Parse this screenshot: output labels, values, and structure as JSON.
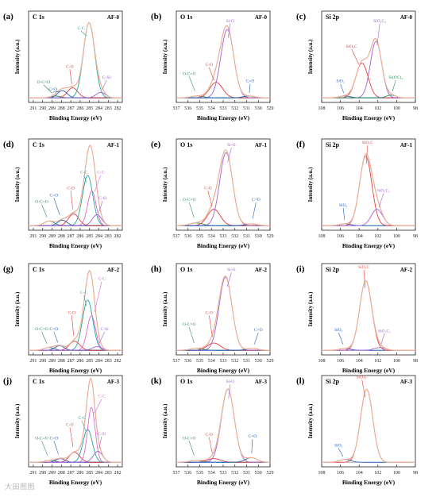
{
  "watermark": "大田图图",
  "colors": {
    "envelope": "#f0a888",
    "fit": "#e2e2e2",
    "axis": "#222222"
  },
  "chart_data": [
    {
      "panel_label": "(a)",
      "type": "line",
      "spectrum": "C 1s",
      "sample": "AF-0",
      "xlabel": "Binding Energy (eV)",
      "ylabel": "Intensity (a.u.)",
      "xlim": [
        291.5,
        281.5
      ],
      "xticks": [
        291,
        290,
        289,
        288,
        287,
        286,
        285,
        284,
        283,
        282
      ],
      "ylim": [
        0,
        1
      ],
      "baseline": 0.05,
      "peaks": [
        {
          "name": "O-C=O",
          "center": 288.6,
          "height": 0.02,
          "width": 0.55,
          "color": "#2e8b57",
          "label_at": [
            289.9,
            0.21
          ]
        },
        {
          "name": "C=O",
          "center": 287.9,
          "height": 0.08,
          "width": 0.5,
          "color": "#1f5fb8",
          "label_at": [
            288.9,
            0.13
          ]
        },
        {
          "name": "C-O",
          "center": 286.8,
          "height": 0.11,
          "width": 0.55,
          "color": "#e23c3c",
          "label_at": [
            287.1,
            0.38
          ]
        },
        {
          "name": "C-C",
          "center": 285.05,
          "height": 0.82,
          "width": 0.6,
          "color": "#22a6a0",
          "label_at": [
            285.9,
            0.8
          ]
        },
        {
          "name": "C-Si",
          "center": 283.8,
          "height": 0.06,
          "width": 0.5,
          "color": "#a060d0",
          "label_at": [
            283.2,
            0.26
          ]
        }
      ]
    },
    {
      "panel_label": "(b)",
      "type": "line",
      "spectrum": "O 1s",
      "sample": "AF-0",
      "xlabel": "Binding Energy (eV)",
      "ylabel": "Intensity (a.u.)",
      "xlim": [
        537,
        529
      ],
      "xticks": [
        537,
        536,
        535,
        534,
        533,
        532,
        531,
        530,
        529
      ],
      "ylim": [
        0,
        1
      ],
      "baseline": 0.05,
      "peaks": [
        {
          "name": "O-C=O",
          "center": 535.2,
          "height": 0.02,
          "width": 0.55,
          "color": "#2e8b57",
          "label_at": [
            535.9,
            0.3
          ]
        },
        {
          "name": "C-O",
          "center": 533.6,
          "height": 0.17,
          "width": 0.55,
          "color": "#e23c3c",
          "label_at": [
            534.2,
            0.4
          ]
        },
        {
          "name": "Si-O",
          "center": 532.65,
          "height": 0.75,
          "width": 0.55,
          "color": "#a060d0",
          "label_at": [
            532.4,
            0.88
          ]
        },
        {
          "name": "C=O",
          "center": 530.8,
          "height": 0.02,
          "width": 0.5,
          "color": "#1f5fb8",
          "label_at": [
            530.7,
            0.22
          ]
        }
      ]
    },
    {
      "panel_label": "(c)",
      "type": "line",
      "spectrum": "Si 2p",
      "sample": "AF-0",
      "xlabel": "Binding Energy (eV)",
      "ylabel": "Intensity (a.u.)",
      "xlim": [
        108,
        98
      ],
      "xticks": [
        108,
        106,
        104,
        102,
        100,
        98
      ],
      "ylim": [
        0,
        1
      ],
      "baseline": 0.05,
      "peaks": [
        {
          "name": "SiO₂",
          "center": 105.5,
          "height": 0.02,
          "width": 0.6,
          "color": "#1f5fb8",
          "label_at": [
            106,
            0.22
          ]
        },
        {
          "name": "SiO₂C",
          "center": 103.7,
          "height": 0.38,
          "width": 0.65,
          "color": "#e23c3c",
          "label_at": [
            104.8,
            0.6
          ]
        },
        {
          "name": "SiO₂C₂",
          "center": 102.2,
          "height": 0.62,
          "width": 0.6,
          "color": "#a060d0",
          "label_at": [
            101.8,
            0.88
          ]
        },
        {
          "name": "Si(OC)₄",
          "center": 100.6,
          "height": 0.03,
          "width": 0.5,
          "color": "#2e8b57",
          "label_at": [
            100.1,
            0.26
          ]
        }
      ]
    },
    {
      "panel_label": "(d)",
      "type": "line",
      "spectrum": "C 1s",
      "sample": "AF-1",
      "xlabel": "Binding Energy (eV)",
      "ylabel": "Intensity (a.u.)",
      "xlim": [
        291.5,
        281.5
      ],
      "xticks": [
        291,
        290,
        289,
        288,
        287,
        286,
        285,
        284,
        283,
        282
      ],
      "ylim": [
        0,
        1
      ],
      "baseline": 0.05,
      "peaks": [
        {
          "name": "O-C=O",
          "center": 289.3,
          "height": 0.05,
          "width": 0.55,
          "color": "#2e8b57",
          "label_at": [
            290.1,
            0.3
          ]
        },
        {
          "name": "C=O",
          "center": 287.9,
          "height": 0.06,
          "width": 0.5,
          "color": "#1f5fb8",
          "label_at": [
            288.8,
            0.37
          ]
        },
        {
          "name": "C-O",
          "center": 286.7,
          "height": 0.13,
          "width": 0.55,
          "color": "#e23c3c",
          "label_at": [
            287,
            0.45
          ]
        },
        {
          "name": "C-C",
          "center": 285.2,
          "height": 0.55,
          "width": 0.55,
          "color": "#22a6a0",
          "label_at": [
            285.6,
            0.62
          ]
        },
        {
          "name": "C-C",
          "center": 284.75,
          "height": 0.38,
          "width": 0.45,
          "color": "#d66bd6",
          "label_at": [
            283.8,
            0.62
          ]
        },
        {
          "name": "C-Si",
          "center": 284.2,
          "height": 0.12,
          "width": 0.5,
          "color": "#a060d0",
          "label_at": [
            283.6,
            0.34
          ]
        }
      ]
    },
    {
      "panel_label": "(e)",
      "type": "line",
      "spectrum": "O 1s",
      "sample": "AF-1",
      "xlabel": "Binding Energy (eV)",
      "ylabel": "Intensity (a.u.)",
      "xlim": [
        537,
        529
      ],
      "xticks": [
        537,
        536,
        535,
        534,
        533,
        532,
        531,
        530,
        529
      ],
      "ylim": [
        0,
        1
      ],
      "baseline": 0.05,
      "peaks": [
        {
          "name": "O-C=O",
          "center": 535.3,
          "height": 0.03,
          "width": 0.55,
          "color": "#2e8b57",
          "label_at": [
            535.9,
            0.32
          ]
        },
        {
          "name": "C-O",
          "center": 533.8,
          "height": 0.18,
          "width": 0.55,
          "color": "#e23c3c",
          "label_at": [
            534.3,
            0.45
          ]
        },
        {
          "name": "Si-O",
          "center": 532.75,
          "height": 0.8,
          "width": 0.55,
          "color": "#a060d0",
          "label_at": [
            532.3,
            0.92
          ]
        },
        {
          "name": "C=O",
          "center": 530.6,
          "height": 0.02,
          "width": 0.5,
          "color": "#1f5fb8",
          "label_at": [
            530.2,
            0.32
          ]
        }
      ]
    },
    {
      "panel_label": "(f)",
      "type": "line",
      "spectrum": "Si 2p",
      "sample": "AF-1",
      "xlabel": "Binding Energy (eV)",
      "ylabel": "Intensity (a.u.)",
      "xlim": [
        108,
        98
      ],
      "xticks": [
        108,
        106,
        104,
        102,
        100,
        98
      ],
      "ylim": [
        0,
        1
      ],
      "baseline": 0.05,
      "peaks": [
        {
          "name": "SiO₂",
          "center": 105.5,
          "height": 0.02,
          "width": 0.6,
          "color": "#1f5fb8",
          "label_at": [
            105.7,
            0.26
          ]
        },
        {
          "name": "SiO₃C",
          "center": 103.3,
          "height": 0.76,
          "width": 0.65,
          "color": "#e23c3c",
          "label_at": [
            103.1,
            0.95
          ]
        },
        {
          "name": "SiO₂C₂",
          "center": 102.1,
          "height": 0.18,
          "width": 0.6,
          "color": "#a060d0",
          "label_at": [
            101.4,
            0.42
          ]
        }
      ]
    },
    {
      "panel_label": "(g)",
      "type": "line",
      "spectrum": "C 1s",
      "sample": "AF-2",
      "xlabel": "Binding Energy (eV)",
      "ylabel": "Intensity (a.u.)",
      "xlim": [
        291.5,
        281.5
      ],
      "xticks": [
        291,
        290,
        289,
        288,
        287,
        286,
        285,
        284,
        283,
        282
      ],
      "ylim": [
        0,
        1
      ],
      "baseline": 0.05,
      "peaks": [
        {
          "name": "O-C=O",
          "center": 289.3,
          "height": 0.03,
          "width": 0.55,
          "color": "#2e8b57",
          "label_at": [
            290.1,
            0.27
          ]
        },
        {
          "name": "C=O",
          "center": 288.2,
          "height": 0.05,
          "width": 0.5,
          "color": "#1f5fb8",
          "label_at": [
            288.8,
            0.27
          ]
        },
        {
          "name": "C-O",
          "center": 286.6,
          "height": 0.1,
          "width": 0.55,
          "color": "#e23c3c",
          "label_at": [
            286.9,
            0.45
          ]
        },
        {
          "name": "C-C",
          "center": 285.2,
          "height": 0.55,
          "width": 0.55,
          "color": "#22a6a0",
          "label_at": [
            285.6,
            0.67
          ]
        },
        {
          "name": "C-C",
          "center": 284.8,
          "height": 0.38,
          "width": 0.45,
          "color": "#d66bd6",
          "label_at": [
            283.7,
            0.82
          ]
        },
        {
          "name": "C-Si",
          "center": 284.2,
          "height": 0.04,
          "width": 0.5,
          "color": "#a060d0",
          "label_at": [
            283.4,
            0.27
          ]
        }
      ]
    },
    {
      "panel_label": "(h)",
      "type": "line",
      "spectrum": "O 1s",
      "sample": "AF-2",
      "xlabel": "Binding Energy (eV)",
      "ylabel": "Intensity (a.u.)",
      "xlim": [
        537,
        529
      ],
      "xticks": [
        537,
        536,
        535,
        534,
        533,
        532,
        531,
        530,
        529
      ],
      "ylim": [
        0,
        1
      ],
      "baseline": 0.05,
      "peaks": [
        {
          "name": "O-C=O",
          "center": 535.3,
          "height": 0.02,
          "width": 0.55,
          "color": "#2e8b57",
          "label_at": [
            535.9,
            0.32
          ]
        },
        {
          "name": "C-O",
          "center": 533.8,
          "height": 0.08,
          "width": 0.55,
          "color": "#e23c3c",
          "label_at": [
            534.2,
            0.45
          ]
        },
        {
          "name": "Si-O",
          "center": 532.8,
          "height": 0.8,
          "width": 0.55,
          "color": "#a060d0",
          "label_at": [
            532.3,
            0.92
          ]
        },
        {
          "name": "C=O",
          "center": 530.5,
          "height": 0.02,
          "width": 0.5,
          "color": "#1f5fb8",
          "label_at": [
            530,
            0.26
          ]
        }
      ]
    },
    {
      "panel_label": "(i)",
      "type": "line",
      "spectrum": "Si 2p",
      "sample": "AF-2",
      "xlabel": "Binding Energy (eV)",
      "ylabel": "Intensity (a.u.)",
      "xlim": [
        108,
        98
      ],
      "xticks": [
        108,
        106,
        104,
        102,
        100,
        98
      ],
      "ylim": [
        0,
        1
      ],
      "baseline": 0.05,
      "peaks": [
        {
          "name": "SiO₂",
          "center": 105.5,
          "height": 0.02,
          "width": 0.6,
          "color": "#1f5fb8",
          "label_at": [
            106.2,
            0.26
          ]
        },
        {
          "name": "SiO₃C",
          "center": 103.3,
          "height": 0.76,
          "width": 0.65,
          "color": "#e23c3c",
          "label_at": [
            103.5,
            0.95
          ]
        },
        {
          "name": "SiO₂C₂",
          "center": 101.8,
          "height": 0.03,
          "width": 0.6,
          "color": "#a060d0",
          "label_at": [
            101.3,
            0.25
          ]
        }
      ]
    },
    {
      "panel_label": "(j)",
      "type": "line",
      "spectrum": "C 1s",
      "sample": "AF-3",
      "xlabel": "Binding Energy (eV)",
      "ylabel": "Intensity (a.u.)",
      "xlim": [
        291.5,
        281.5
      ],
      "xticks": [
        291,
        290,
        289,
        288,
        287,
        286,
        285,
        284,
        283,
        282
      ],
      "ylim": [
        0,
        1
      ],
      "baseline": 0.05,
      "peaks": [
        {
          "name": "O-C=O",
          "center": 289.2,
          "height": 0.02,
          "width": 0.55,
          "color": "#2e8b57",
          "label_at": [
            290.1,
            0.3
          ]
        },
        {
          "name": "C=O",
          "center": 288.1,
          "height": 0.04,
          "width": 0.5,
          "color": "#1f5fb8",
          "label_at": [
            288.8,
            0.3
          ]
        },
        {
          "name": "C-O",
          "center": 286.6,
          "height": 0.11,
          "width": 0.55,
          "color": "#e23c3c",
          "label_at": [
            287.1,
            0.45
          ]
        },
        {
          "name": "C-C",
          "center": 285.2,
          "height": 0.36,
          "width": 0.5,
          "color": "#22a6a0",
          "label_at": [
            285.8,
            0.52
          ]
        },
        {
          "name": "C-C",
          "center": 284.8,
          "height": 0.6,
          "width": 0.4,
          "color": "#d66bd6",
          "label_at": [
            283.7,
            0.76
          ]
        },
        {
          "name": "C-Si",
          "center": 284.1,
          "height": 0.12,
          "width": 0.5,
          "color": "#a060d0",
          "label_at": [
            283.7,
            0.35
          ]
        }
      ]
    },
    {
      "panel_label": "(k)",
      "type": "line",
      "spectrum": "O 1s",
      "sample": "AF-3",
      "xlabel": "Binding Energy (eV)",
      "ylabel": "Intensity (a.u.)",
      "xlim": [
        537,
        529
      ],
      "xticks": [
        537,
        536,
        535,
        534,
        533,
        532,
        531,
        530,
        529
      ],
      "ylim": [
        0,
        1
      ],
      "baseline": 0.05,
      "peaks": [
        {
          "name": "O-C=O",
          "center": 535.3,
          "height": 0.02,
          "width": 0.55,
          "color": "#2e8b57",
          "label_at": [
            535.9,
            0.3
          ]
        },
        {
          "name": "C-O",
          "center": 533.8,
          "height": 0.04,
          "width": 0.55,
          "color": "#e23c3c",
          "label_at": [
            534.2,
            0.34
          ]
        },
        {
          "name": "Si-O",
          "center": 532.6,
          "height": 0.8,
          "width": 0.55,
          "color": "#a060d0",
          "label_at": [
            532.4,
            0.92
          ]
        },
        {
          "name": "C=O",
          "center": 530.6,
          "height": 0.05,
          "width": 0.5,
          "color": "#1f5fb8",
          "label_at": [
            530.5,
            0.32
          ]
        }
      ]
    },
    {
      "panel_label": "(l)",
      "type": "line",
      "spectrum": "Si 2p",
      "sample": "AF-3",
      "xlabel": "Binding Energy (eV)",
      "ylabel": "Intensity (a.u.)",
      "xlim": [
        108,
        98
      ],
      "xticks": [
        108,
        106,
        104,
        102,
        100,
        98
      ],
      "ylim": [
        0,
        1
      ],
      "baseline": 0.05,
      "peaks": [
        {
          "name": "SiO₂",
          "center": 105.5,
          "height": 0.03,
          "width": 0.6,
          "color": "#1f5fb8",
          "label_at": [
            106.2,
            0.22
          ]
        },
        {
          "name": "SiO₃C",
          "center": 103.2,
          "height": 0.8,
          "width": 0.65,
          "color": "#e23c3c",
          "label_at": [
            103.7,
            0.97
          ]
        }
      ]
    }
  ]
}
